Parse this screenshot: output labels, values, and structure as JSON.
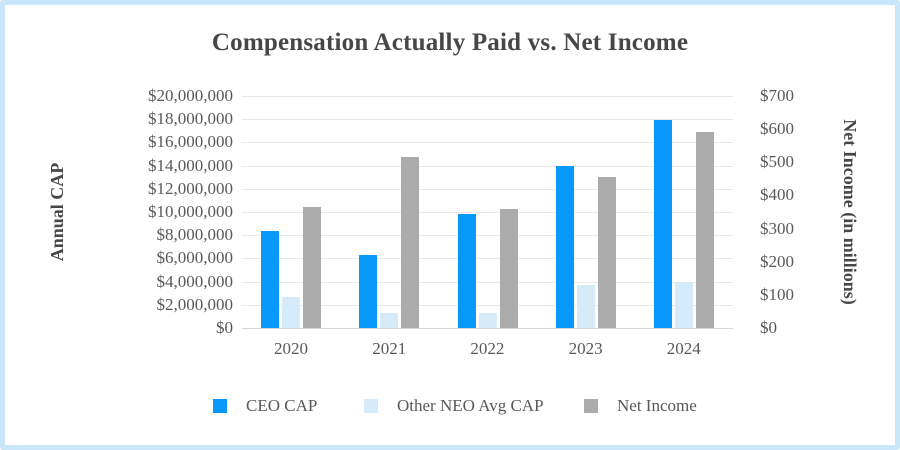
{
  "colors": {
    "frame_border": "#c9e7f8",
    "title_text": "#474747",
    "tick_text": "#595959",
    "gridline": "#e9e9e9",
    "axis_line": "#d6d6d6",
    "ceo_cap_blue": "#0899fa",
    "neo_cap_light_blue": "#d5ebfa",
    "net_income_gray": "#ababab"
  },
  "chart_data": {
    "type": "bar",
    "title": "Compensation Actually Paid vs. Net Income",
    "categories": [
      "2020",
      "2021",
      "2022",
      "2023",
      "2024"
    ],
    "series": [
      {
        "name": "CEO CAP",
        "axis": "left",
        "color": "#0899fa",
        "values": [
          8400000,
          6300000,
          9800000,
          14000000,
          17900000
        ]
      },
      {
        "name": "Other NEO Avg CAP",
        "axis": "left",
        "color": "#d5ebfa",
        "values": [
          2700000,
          1300000,
          1300000,
          3700000,
          4000000
        ]
      },
      {
        "name": "Net Income",
        "axis": "right",
        "unit": "millions",
        "color": "#ababab",
        "values": [
          365,
          515,
          360,
          455,
          590
        ]
      }
    ],
    "left_axis": {
      "title": "Annual CAP",
      "min": 0,
      "max": 20000000,
      "step": 2000000,
      "tick_prefix": "$",
      "tick_labels": [
        "$20,000,000",
        "$18,000,000",
        "$16,000,000",
        "$14,000,000",
        "$12,000,000",
        "$10,000,000",
        "$8,000,000",
        "$6,000,000",
        "$4,000,000",
        "$2,000,000",
        "$0"
      ]
    },
    "right_axis": {
      "title": "Net Income (in millions)",
      "min": 0,
      "max": 700,
      "step": 100,
      "tick_prefix": "$",
      "tick_labels": [
        "$700",
        "$600",
        "$500",
        "$400",
        "$300",
        "$200",
        "$100",
        "$0"
      ]
    },
    "grid": true,
    "legend_position": "bottom"
  }
}
